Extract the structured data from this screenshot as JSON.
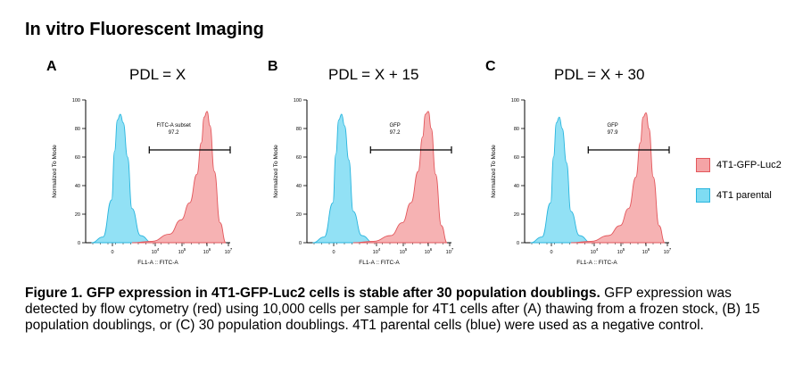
{
  "title": "In vitro Fluorescent Imaging",
  "colors": {
    "gfp_fill": "#f4a4a6",
    "gfp_stroke": "#e3575c",
    "parental_fill": "#7fdcf3",
    "parental_stroke": "#29b5de"
  },
  "legend": [
    {
      "label": "4T1-GFP-Luc2",
      "color": "#f4a4a6",
      "stroke": "#e3575c"
    },
    {
      "label": "4T1 parental",
      "color": "#7fdcf3",
      "stroke": "#29b5de"
    }
  ],
  "chart_data": [
    {
      "type": "area",
      "panel_label": "A",
      "title": "PDL = X",
      "xlabel": "FL1-A :: FITC-A",
      "ylabel": "Normalized To Mode",
      "yticks": [
        "0",
        "20",
        "40",
        "60",
        "80",
        "100"
      ],
      "ylim": [
        0,
        100
      ],
      "xticks": [
        {
          "base": "0",
          "exp": ""
        },
        {
          "base": "10",
          "exp": "4"
        },
        {
          "base": "10",
          "exp": "5"
        },
        {
          "base": "10",
          "exp": "6"
        },
        {
          "base": "10",
          "exp": "7"
        }
      ],
      "gate": {
        "name": "FITC-A subset",
        "value": "97.2",
        "from": 4.2,
        "to": 7.0,
        "level": 65
      },
      "series": [
        {
          "name": "4T1 parental",
          "peak_x": 3.2,
          "x": [
            2.2,
            2.6,
            2.9,
            3.0,
            3.1,
            3.2,
            3.3,
            3.45,
            3.6,
            3.9,
            4.3
          ],
          "y": [
            0,
            4,
            30,
            64,
            86,
            90,
            84,
            60,
            24,
            5,
            0
          ]
        },
        {
          "name": "4T1-GFP-Luc2",
          "peak_x": 6.15,
          "x": [
            3.6,
            4.3,
            4.9,
            5.3,
            5.6,
            5.85,
            6.0,
            6.1,
            6.2,
            6.3,
            6.45,
            6.65,
            6.85
          ],
          "y": [
            0,
            1,
            6,
            16,
            28,
            48,
            70,
            88,
            92,
            82,
            50,
            14,
            0
          ]
        }
      ]
    },
    {
      "type": "area",
      "panel_label": "B",
      "title": "PDL = X + 15",
      "xlabel": "FL1-A :: FITC-A",
      "ylabel": "Normalized To Mode",
      "yticks": [
        "0",
        "20",
        "40",
        "60",
        "80",
        "100"
      ],
      "ylim": [
        0,
        100
      ],
      "xticks": [
        {
          "base": "0",
          "exp": ""
        },
        {
          "base": "10",
          "exp": "4"
        },
        {
          "base": "10",
          "exp": "5"
        },
        {
          "base": "10",
          "exp": "6"
        },
        {
          "base": "10",
          "exp": "7"
        }
      ],
      "gate": {
        "name": "GFP",
        "value": "97.2",
        "from": 4.2,
        "to": 7.0,
        "level": 65
      },
      "series": [
        {
          "name": "4T1 parental",
          "peak_x": 3.2,
          "x": [
            2.2,
            2.6,
            2.9,
            3.0,
            3.1,
            3.2,
            3.3,
            3.45,
            3.6,
            3.9,
            4.3
          ],
          "y": [
            0,
            4,
            28,
            62,
            86,
            90,
            82,
            58,
            22,
            5,
            0
          ]
        },
        {
          "name": "4T1-GFP-Luc2",
          "peak_x": 6.15,
          "x": [
            3.6,
            4.3,
            4.9,
            5.3,
            5.6,
            5.85,
            6.0,
            6.1,
            6.2,
            6.3,
            6.45,
            6.65,
            6.85
          ],
          "y": [
            0,
            1,
            5,
            14,
            28,
            50,
            74,
            90,
            92,
            80,
            48,
            12,
            0
          ]
        }
      ]
    },
    {
      "type": "area",
      "panel_label": "C",
      "title": "PDL = X + 30",
      "xlabel": "FL1-A :: FITC-A",
      "ylabel": "Normalized To Mode",
      "yticks": [
        "0",
        "20",
        "40",
        "60",
        "80",
        "100"
      ],
      "ylim": [
        0,
        100
      ],
      "xticks": [
        {
          "base": "0",
          "exp": ""
        },
        {
          "base": "10",
          "exp": "4"
        },
        {
          "base": "10",
          "exp": "5"
        },
        {
          "base": "10",
          "exp": "6"
        },
        {
          "base": "10",
          "exp": "7"
        }
      ],
      "gate": {
        "name": "GFP",
        "value": "97.9",
        "from": 4.2,
        "to": 7.0,
        "level": 65
      },
      "series": [
        {
          "name": "4T1 parental",
          "peak_x": 3.2,
          "x": [
            2.2,
            2.6,
            2.9,
            3.0,
            3.1,
            3.2,
            3.3,
            3.45,
            3.6,
            3.9,
            4.3
          ],
          "y": [
            0,
            4,
            28,
            60,
            84,
            88,
            80,
            56,
            22,
            5,
            0
          ]
        },
        {
          "name": "4T1-GFP-Luc2",
          "peak_x": 6.15,
          "x": [
            3.6,
            4.3,
            4.9,
            5.3,
            5.6,
            5.85,
            6.0,
            6.1,
            6.2,
            6.3,
            6.45,
            6.65,
            6.85
          ],
          "y": [
            0,
            1,
            5,
            12,
            24,
            46,
            70,
            88,
            91,
            80,
            46,
            12,
            0
          ]
        }
      ]
    }
  ],
  "caption": {
    "bold": "Figure 1. GFP expression in 4T1-GFP-Luc2 cells is stable after 30 population doublings.",
    "text": " GFP expression was detected by flow cytometry (red) using 10,000 cells per sample for 4T1 cells after (A) thawing from a frozen stock, (B) 15 population doublings, or (C) 30 population doublings. 4T1 parental cells (blue) were used as a negative control."
  }
}
